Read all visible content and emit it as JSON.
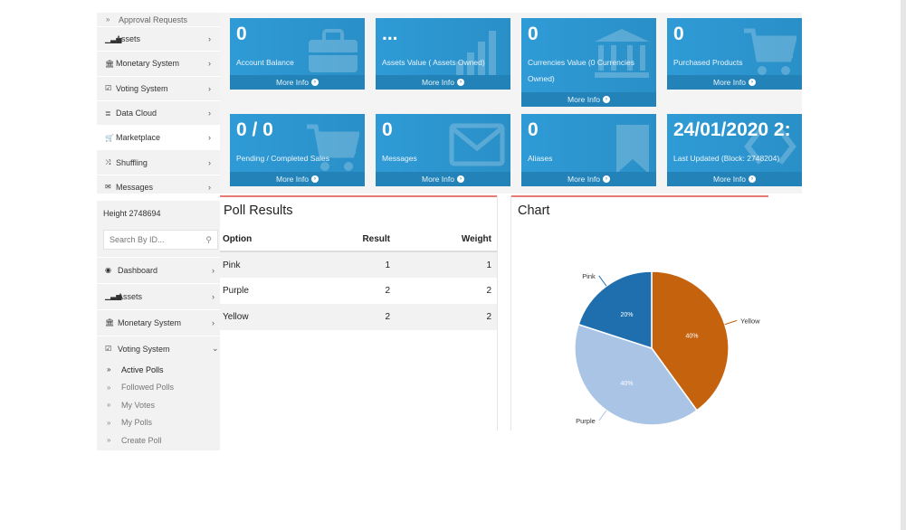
{
  "sidebar_top": {
    "items": [
      {
        "label": "Approval Requests",
        "icon": "double-chevron-icon",
        "glyph": "»",
        "sub": true
      },
      {
        "label": "Assets",
        "icon": "bar-chart-icon",
        "glyph": "▁▃▅"
      },
      {
        "label": "Monetary System",
        "icon": "bank-icon",
        "glyph": "🏛"
      },
      {
        "label": "Voting System",
        "icon": "check-square-icon",
        "glyph": "☑"
      },
      {
        "label": "Data Cloud",
        "icon": "database-icon",
        "glyph": "≣"
      },
      {
        "label": "Marketplace",
        "icon": "cart-icon",
        "glyph": "🛒"
      },
      {
        "label": "Shuffling",
        "icon": "shuffle-icon",
        "glyph": "⤨"
      },
      {
        "label": "Messages",
        "icon": "envelope-icon",
        "glyph": "✉"
      }
    ],
    "chevron": "›"
  },
  "tiles": [
    {
      "value": "0",
      "caption": "Account Balance",
      "more": "More Info",
      "icon": "briefcase-icon"
    },
    {
      "value": "...",
      "caption": "Assets Value ( Assets Owned)",
      "more": "More Info",
      "icon": "bar-chart-icon"
    },
    {
      "value": "0",
      "caption": "Currencies Value (0 Currencies Owned)",
      "more": "More Info",
      "icon": "bank-icon"
    },
    {
      "value": "0",
      "caption": "Purchased Products",
      "more": "More Info",
      "icon": "cart-icon"
    },
    {
      "value": "0 / 0",
      "caption": "Pending / Completed Sales",
      "more": "More Info",
      "icon": "cart-icon"
    },
    {
      "value": "0",
      "caption": "Messages",
      "more": "More Info",
      "icon": "envelope-icon"
    },
    {
      "value": "0",
      "caption": "Aliases",
      "more": "More Info",
      "icon": "bookmark-icon"
    },
    {
      "value": "24/01/2020 2:",
      "caption": "Last Updated (Block: 2748204)",
      "more": "More Info",
      "icon": "code-icon"
    }
  ],
  "sidebar_main": {
    "height_label": "Height 2748694",
    "search_placeholder": "Search By ID...",
    "items": [
      {
        "label": "Dashboard",
        "icon": "dashboard-icon",
        "glyph": "◉",
        "chevron": "›"
      },
      {
        "label": "Assets",
        "icon": "bar-chart-icon",
        "glyph": "▁▃▅",
        "chevron": "›"
      },
      {
        "label": "Monetary System",
        "icon": "bank-icon",
        "glyph": "🏛",
        "chevron": "›"
      },
      {
        "label": "Voting System",
        "icon": "check-square-icon",
        "glyph": "☑",
        "chevron": "⌄"
      }
    ],
    "sub_items": [
      {
        "label": "Active Polls",
        "active": true
      },
      {
        "label": "Followed Polls"
      },
      {
        "label": "My Votes"
      },
      {
        "label": "My Polls"
      },
      {
        "label": "Create Poll"
      }
    ],
    "bullet": "»"
  },
  "poll_results": {
    "title": "Poll Results",
    "headers": [
      "Option",
      "Result",
      "Weight"
    ],
    "rows": [
      [
        "Pink",
        "1",
        "1"
      ],
      [
        "Purple",
        "2",
        "2"
      ],
      [
        "Yellow",
        "2",
        "2"
      ]
    ]
  },
  "chart_panel": {
    "title": "Chart"
  },
  "chart_data": {
    "type": "pie",
    "categories": [
      "Pink",
      "Yellow",
      "Purple"
    ],
    "values": [
      20,
      40,
      40
    ],
    "value_labels": [
      "20%",
      "40%",
      "40%"
    ],
    "colors": [
      "#1f6fae",
      "#c5620e",
      "#aac4e6"
    ]
  },
  "colors": {
    "tile": "#2b97d0",
    "tile_footer": "#2383b8",
    "panel_accent": "#e57b72",
    "sidebar_bg": "#f2f2f2"
  }
}
